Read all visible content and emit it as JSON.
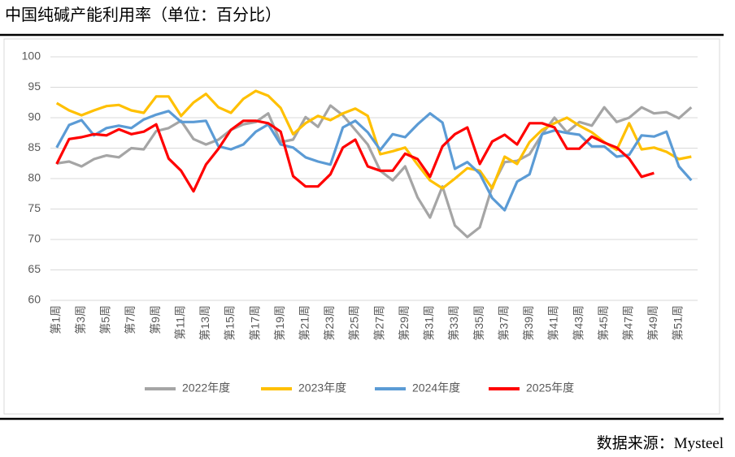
{
  "chart_data": {
    "type": "line",
    "title": "中国纯碱产能利用率（单位：百分比）",
    "source": "数据来源：Mysteel",
    "categories": [
      "第1周",
      null,
      "第3周",
      null,
      "第5周",
      null,
      "第7周",
      null,
      "第9周",
      null,
      "第11周",
      null,
      "第13周",
      null,
      "第15周",
      null,
      "第17周",
      null,
      "第19周",
      null,
      "第21周",
      null,
      "第23周",
      null,
      "第25周",
      null,
      "第27周",
      null,
      "第29周",
      null,
      "第31周",
      null,
      "第33周",
      null,
      "第35周",
      null,
      "第37周",
      null,
      "第39周",
      null,
      "第41周",
      null,
      "第43周",
      null,
      "第45周",
      null,
      "第47周",
      null,
      "第49周",
      null,
      "第51周",
      null
    ],
    "ylim": [
      60,
      100
    ],
    "yticks": [
      60,
      65,
      70,
      75,
      80,
      85,
      90,
      95,
      100
    ],
    "grid": true,
    "legend": "bottom",
    "series": [
      {
        "name": "2022年度",
        "color": "#a5a5a5",
        "values": [
          82.5,
          82.8,
          82.0,
          83.2,
          83.8,
          83.5,
          85.0,
          84.8,
          87.8,
          88.3,
          89.5,
          86.5,
          85.6,
          86.4,
          88.0,
          88.9,
          89.3,
          90.7,
          86.0,
          86.4,
          90.1,
          88.5,
          92.0,
          90.4,
          88.0,
          85.6,
          81.3,
          79.7,
          82.0,
          76.9,
          73.6,
          78.7,
          72.3,
          70.4,
          72.0,
          78.7,
          82.7,
          82.9,
          84.0,
          87.3,
          90.0,
          87.6,
          89.3,
          88.7,
          91.7,
          89.3,
          90.0,
          91.7,
          90.7,
          90.9,
          89.9,
          91.7
        ]
      },
      {
        "name": "2023年度",
        "color": "#ffc000",
        "values": [
          92.4,
          91.2,
          90.4,
          91.2,
          91.9,
          92.1,
          91.2,
          90.8,
          93.5,
          93.5,
          90.3,
          92.5,
          93.9,
          91.7,
          90.8,
          93.1,
          94.4,
          93.6,
          91.6,
          87.3,
          89.1,
          90.3,
          89.6,
          90.7,
          91.5,
          90.3,
          84.0,
          84.5,
          85.1,
          82.3,
          79.7,
          78.4,
          80.0,
          81.7,
          81.3,
          78.4,
          83.6,
          82.4,
          86.0,
          88.0,
          89.1,
          90.0,
          88.7,
          87.6,
          86.0,
          84.7,
          89.1,
          84.8,
          85.1,
          84.4,
          83.2,
          83.6
        ]
      },
      {
        "name": "2024年度",
        "color": "#5b9bd5",
        "values": [
          85.1,
          88.8,
          89.6,
          87.1,
          88.3,
          88.7,
          88.3,
          89.7,
          90.5,
          91.1,
          89.3,
          89.3,
          89.5,
          85.3,
          84.8,
          85.6,
          87.7,
          88.9,
          85.6,
          85.1,
          83.5,
          82.8,
          82.3,
          88.4,
          89.5,
          87.6,
          84.7,
          87.3,
          86.8,
          88.9,
          90.7,
          89.2,
          81.6,
          82.7,
          80.8,
          76.8,
          74.8,
          79.5,
          80.7,
          87.3,
          87.9,
          87.5,
          87.2,
          85.3,
          85.3,
          83.6,
          83.9,
          87.1,
          86.9,
          87.7,
          82.0,
          79.7
        ]
      },
      {
        "name": "2025年度",
        "color": "#ff0000",
        "values": [
          82.4,
          86.5,
          86.8,
          87.3,
          87.1,
          88.1,
          87.3,
          87.7,
          88.9,
          83.3,
          81.3,
          77.9,
          82.3,
          84.9,
          88.0,
          89.5,
          89.5,
          89.1,
          87.7,
          80.4,
          78.7,
          78.7,
          80.7,
          85.1,
          86.4,
          82.0,
          81.3,
          81.3,
          84.1,
          83.2,
          80.3,
          85.3,
          87.3,
          88.4,
          82.4,
          86.1,
          87.2,
          85.6,
          89.1,
          89.1,
          88.4,
          84.9,
          84.9,
          86.9,
          85.9,
          85.1,
          83.3,
          80.3,
          80.9,
          null,
          null,
          null
        ]
      }
    ]
  }
}
